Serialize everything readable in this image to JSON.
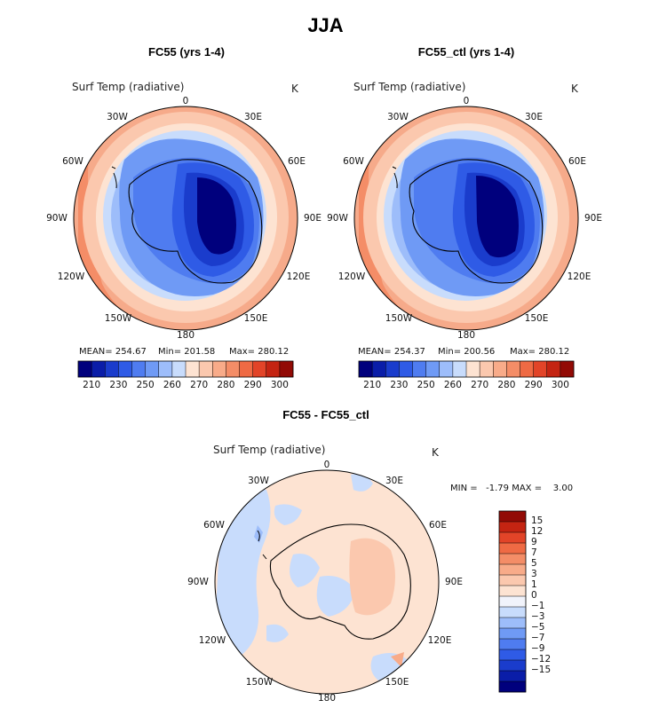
{
  "title": "JJA",
  "panels": [
    {
      "title": "FC55 (yrs 1-4)",
      "variable": "Surf Temp (radiative)",
      "unit": "K",
      "stats": {
        "mean": "MEAN= 254.67",
        "min": "Min= 201.58",
        "max": "Max= 280.12"
      }
    },
    {
      "title": "FC55_ctl (yrs 1-4)",
      "variable": "Surf Temp (radiative)",
      "unit": "K",
      "stats": {
        "mean": "MEAN= 254.37",
        "min": "Min= 200.56",
        "max": "Max= 280.12"
      }
    },
    {
      "title": "FC55 - FC55_ctl",
      "variable": "Surf Temp (radiative)",
      "unit": "K",
      "minmax": "MIN =   -1.79 MAX =    3.00"
    }
  ],
  "longitude_labels": [
    "0",
    "30E",
    "60E",
    "90E",
    "120E",
    "150E",
    "180",
    "150W",
    "120W",
    "90W",
    "60W",
    "30W"
  ],
  "chart_data": [
    {
      "type": "heatmap",
      "projection": "south-polar-stereographic",
      "title": "FC55 (yrs 1-4)",
      "variable": "Surf Temp (radiative)",
      "units": "K",
      "mean": 254.67,
      "min": 201.58,
      "max": 280.12,
      "colorbar_levels": [
        210,
        230,
        250,
        260,
        270,
        280,
        290,
        300
      ],
      "colorbar_tick_labels": [
        "210",
        "230",
        "250",
        "260",
        "270",
        "280",
        "290",
        "300"
      ],
      "colors": [
        "#00007d",
        "#0a1da8",
        "#1a3ccc",
        "#2f5be6",
        "#4f7cf0",
        "#6f9af5",
        "#9dbdfa",
        "#c8dcfc",
        "#fde3d2",
        "#fbc8ae",
        "#f8ab89",
        "#f48d67",
        "#ef6a44",
        "#e24428",
        "#c42412",
        "#920a05"
      ]
    },
    {
      "type": "heatmap",
      "projection": "south-polar-stereographic",
      "title": "FC55_ctl (yrs 1-4)",
      "variable": "Surf Temp (radiative)",
      "units": "K",
      "mean": 254.37,
      "min": 200.56,
      "max": 280.12,
      "colorbar_levels": [
        210,
        230,
        250,
        260,
        270,
        280,
        290,
        300
      ],
      "colorbar_tick_labels": [
        "210",
        "230",
        "250",
        "260",
        "270",
        "280",
        "290",
        "300"
      ],
      "colors": [
        "#00007d",
        "#0a1da8",
        "#1a3ccc",
        "#2f5be6",
        "#4f7cf0",
        "#6f9af5",
        "#9dbdfa",
        "#c8dcfc",
        "#fde3d2",
        "#fbc8ae",
        "#f8ab89",
        "#f48d67",
        "#ef6a44",
        "#e24428",
        "#c42412",
        "#920a05"
      ]
    },
    {
      "type": "heatmap",
      "projection": "south-polar-stereographic",
      "title": "FC55 - FC55_ctl",
      "variable": "Surf Temp (radiative)",
      "units": "K",
      "min": -1.79,
      "max": 3.0,
      "colorbar_tick_labels": [
        "15",
        "12",
        "9",
        "7",
        "5",
        "3",
        "1",
        "0",
        "-1",
        "-3",
        "-5",
        "-7",
        "-9",
        "-12",
        "-15"
      ],
      "colors": [
        "#920a05",
        "#c42412",
        "#e24428",
        "#ef6a44",
        "#f48d67",
        "#f8ab89",
        "#fbc8ae",
        "#fde3d2",
        "#f1f3fb",
        "#c8dcfc",
        "#9dbdfa",
        "#6f9af5",
        "#4f7cf0",
        "#2f5be6",
        "#1a3ccc",
        "#0a1da8",
        "#00007d"
      ]
    }
  ]
}
